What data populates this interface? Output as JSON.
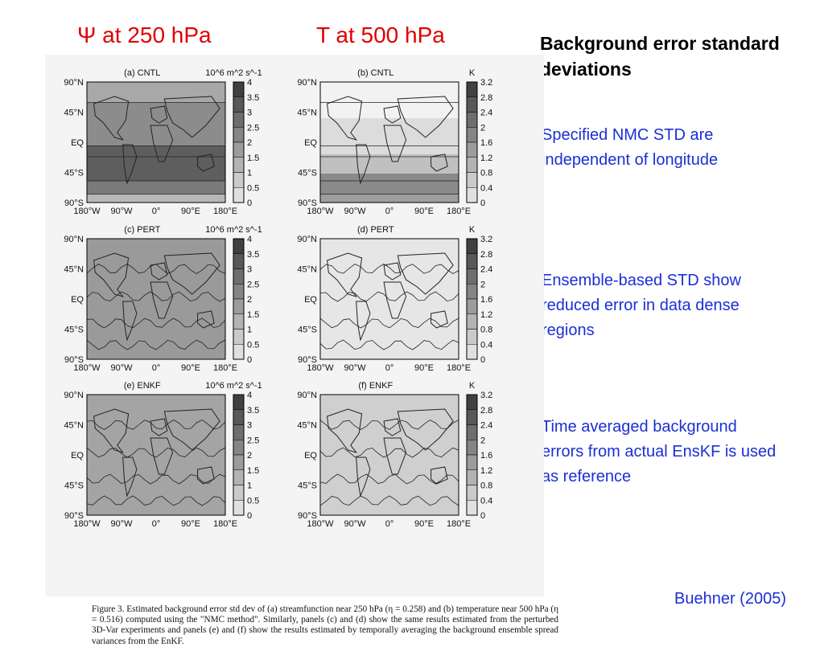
{
  "header": {
    "psi": "Ψ at 250 hPa",
    "t": "T at 500 hPa"
  },
  "title": "Background error standard deviations",
  "notes": [
    "Specified NMC STD are independent of longitude",
    "Ensemble-based STD show reduced error in data dense regions",
    "Time averaged background errors from actual EnsKF is used as reference"
  ],
  "citation": "Buehner (2005)",
  "figure": {
    "lat_labels": [
      "90°N",
      "45°N",
      "EQ",
      "45°S",
      "90°S"
    ],
    "lon_labels": [
      "180°W",
      "90°W",
      "0°",
      "90°E",
      "180°E"
    ],
    "psi_units": "10^6 m^2 s^-1",
    "t_units": "K",
    "psi_scale": [
      "4",
      "3.5",
      "3",
      "2.5",
      "2",
      "1.5",
      "1",
      "0.5",
      "0"
    ],
    "t_scale": [
      "3.2",
      "2.8",
      "2.4",
      "2",
      "1.6",
      "1.2",
      "0.8",
      "0.4",
      "0"
    ],
    "panels": [
      {
        "label": "(a) CNTL",
        "var": "psi"
      },
      {
        "label": "(b) CNTL",
        "var": "t"
      },
      {
        "label": "(c) PERT",
        "var": "psi"
      },
      {
        "label": "(d) PERT",
        "var": "t"
      },
      {
        "label": "(e) ENKF",
        "var": "psi"
      },
      {
        "label": "(f) ENKF",
        "var": "t"
      }
    ],
    "caption": "Figure 3. Estimated background error std dev of (a) streamfunction near 250 hPa (η = 0.258) and (b) temperature near 500 hPa (η = 0.516) computed using the \"NMC method\". Similarly, panels (c) and (d) show the same results estimated from the perturbed 3D-Var experiments and panels (e) and (f) show the results estimated by temporally averaging the background ensemble spread variances from the EnKF."
  }
}
